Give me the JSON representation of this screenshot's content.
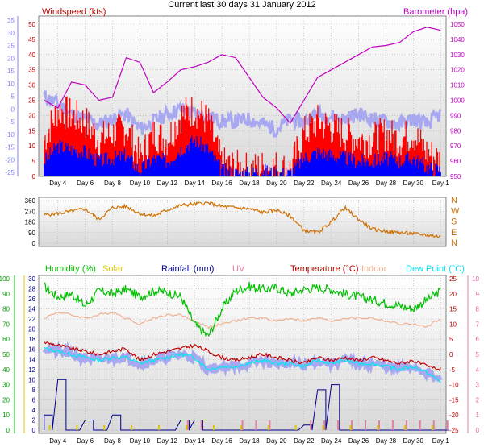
{
  "title": "Current last 30 days 31 January 2012",
  "colors": {
    "grid": "#b0b0b0",
    "plot_bg_top": "#ffffff",
    "plot_bg_bottom": "#d8d8d8",
    "windspeed": "#d40000",
    "gust": "#ff0000",
    "avgwind": "#0000ff",
    "barometer": "#c000c0",
    "direction": "#d07000",
    "humidity": "#00c000",
    "solar": "#d8c800",
    "rainfall": "#000090",
    "uv": "#e080a0",
    "temperature": "#c00000",
    "indoor": "#f0b090",
    "dewpoint": "#00e8f0",
    "dewband": "#a8a8f0",
    "left_axis_windchill": "#8080ff"
  },
  "x_labels": [
    "Day 4",
    "Day 6",
    "Day 8",
    "Day 10",
    "Day 12",
    "Day 14",
    "Day 16",
    "Day 18",
    "Day 20",
    "Day 22",
    "Day 24",
    "Day 26",
    "Day 28",
    "Day 30",
    "Day 1"
  ],
  "chart_data": [
    {
      "type": "line",
      "title": "Current last 30 days 31 January 2012",
      "panel": "wind-barometer",
      "y_left_label": "Windspeed (kts)",
      "y_right_label": "Barometer (hpa)",
      "y_left_outer_ticks": [
        "35",
        "30",
        "25",
        "20",
        "15",
        "10",
        "5",
        "0",
        "-5",
        "-10",
        "-15",
        "-20",
        "-25"
      ],
      "y_left_inner_ticks": [
        "50",
        "45",
        "40",
        "35",
        "30",
        "25",
        "20",
        "15",
        "10",
        "5",
        "0"
      ],
      "y_right_ticks": [
        "1050",
        "1040",
        "1030",
        "1020",
        "1010",
        "1000",
        "990",
        "980",
        "970",
        "960",
        "950"
      ],
      "ylim_left": [
        0,
        50
      ],
      "ylim_right": [
        950,
        1050
      ],
      "days": [
        3,
        4,
        5,
        6,
        7,
        8,
        9,
        10,
        11,
        12,
        13,
        14,
        15,
        16,
        17,
        18,
        19,
        20,
        21,
        22,
        23,
        24,
        25,
        26,
        27,
        28,
        29,
        30,
        31,
        32
      ],
      "series": [
        {
          "name": "Gust",
          "values": [
            12,
            22,
            20,
            18,
            12,
            14,
            16,
            6,
            14,
            12,
            20,
            22,
            18,
            4,
            3,
            2,
            3,
            3,
            2,
            14,
            18,
            16,
            14,
            12,
            12,
            14,
            12,
            14,
            8,
            5
          ]
        },
        {
          "name": "Average",
          "values": [
            5,
            10,
            9,
            8,
            5,
            6,
            7,
            2,
            6,
            5,
            9,
            12,
            9,
            2,
            1,
            1,
            2,
            1,
            1,
            6,
            8,
            7,
            6,
            5,
            5,
            6,
            5,
            6,
            3,
            2
          ]
        },
        {
          "name": "Barometer (hpa)",
          "values": [
            1000,
            995,
            1012,
            1010,
            1000,
            1002,
            1028,
            1025,
            1005,
            1012,
            1020,
            1022,
            1025,
            1030,
            1028,
            1015,
            1002,
            995,
            985,
            1000,
            1015,
            1020,
            1025,
            1030,
            1035,
            1036,
            1038,
            1045,
            1048,
            1046
          ]
        },
        {
          "name": "Wind chill (outer left axis)",
          "values": [
            5,
            2,
            -2,
            -4,
            -6,
            -4,
            -2,
            -8,
            -5,
            -2,
            0,
            -2,
            -3,
            -5,
            -5,
            -4,
            -6,
            -8,
            -4,
            -5,
            -2,
            -3,
            -4,
            -2,
            -4,
            -5,
            -6,
            -4,
            -6,
            -2
          ]
        }
      ]
    },
    {
      "type": "line",
      "panel": "wind-direction",
      "y_left_ticks": [
        "360",
        "270",
        "180",
        "90",
        "0"
      ],
      "y_right_ticks": [
        "N",
        "W",
        "S",
        "E",
        "N"
      ],
      "ylim": [
        0,
        360
      ],
      "days": [
        3,
        4,
        5,
        6,
        7,
        8,
        9,
        10,
        11,
        12,
        13,
        14,
        15,
        16,
        17,
        18,
        19,
        20,
        21,
        22,
        23,
        24,
        25,
        26,
        27,
        28,
        29,
        30,
        31,
        32
      ],
      "series": [
        {
          "name": "Direction",
          "values": [
            240,
            250,
            270,
            290,
            200,
            300,
            310,
            250,
            230,
            280,
            320,
            330,
            340,
            310,
            300,
            290,
            260,
            280,
            230,
            110,
            90,
            180,
            300,
            200,
            120,
            100,
            90,
            80,
            70,
            55
          ]
        }
      ]
    },
    {
      "type": "line",
      "panel": "temperature-humidity-rain",
      "legend": [
        "Humidity (%)",
        "Solar",
        "Rainfall (mm)",
        "UV",
        "Temperature (°C)",
        "Indoor",
        "Dew Point (°C)"
      ],
      "y_outer_left_ticks": [
        "100",
        "90",
        "80",
        "70",
        "60",
        "50",
        "40",
        "30",
        "20",
        "10",
        "0"
      ],
      "y_inner_left_ticks": [
        "30",
        "28",
        "26",
        "24",
        "22",
        "20",
        "18",
        "16",
        "14",
        "12",
        "10",
        "8",
        "6",
        "4",
        "2",
        "0"
      ],
      "y_right_ticks": [
        "25",
        "20",
        "15",
        "10",
        "5",
        "0",
        "-5",
        "-10",
        "-15",
        "-20",
        "-25"
      ],
      "y_outer_right_ticks": [
        "10",
        "9",
        "8",
        "7",
        "6",
        "5",
        "4",
        "3",
        "2",
        "1",
        "0"
      ],
      "ylim_humidity": [
        0,
        100
      ],
      "ylim_temperature": [
        -25,
        25
      ],
      "ylim_rain": [
        0,
        30
      ],
      "days": [
        3,
        4,
        5,
        6,
        7,
        8,
        9,
        10,
        11,
        12,
        13,
        14,
        15,
        16,
        17,
        18,
        19,
        20,
        21,
        22,
        23,
        24,
        25,
        26,
        27,
        28,
        29,
        30,
        31,
        32
      ],
      "series": [
        {
          "name": "Humidity (%)",
          "values": [
            95,
            88,
            90,
            82,
            92,
            90,
            93,
            88,
            92,
            91,
            88,
            70,
            62,
            80,
            92,
            95,
            93,
            94,
            90,
            93,
            94,
            93,
            90,
            88,
            86,
            84,
            82,
            80,
            86,
            92
          ]
        },
        {
          "name": "Indoor",
          "values": [
            12,
            14,
            13,
            12,
            13,
            14,
            12,
            10,
            12,
            13,
            13,
            11,
            9,
            10,
            11,
            12,
            12,
            11,
            12,
            11,
            12,
            11,
            12,
            12,
            12,
            11,
            10,
            10,
            9,
            12
          ]
        },
        {
          "name": "Temperature (°C)",
          "values": [
            4,
            3,
            2,
            1,
            0,
            1,
            2,
            -2,
            0,
            1,
            2,
            3,
            1,
            -1,
            -2,
            -1,
            0,
            -1,
            -2,
            -3,
            -1,
            -2,
            -1,
            -2,
            -1,
            -2,
            -3,
            -2,
            -4,
            -5
          ]
        },
        {
          "name": "Dew Point (°C)",
          "values": [
            2,
            1,
            0,
            -1,
            -2,
            -1,
            -1,
            -3,
            -2,
            -1,
            0,
            -1,
            -5,
            -4,
            -4,
            -3,
            -2,
            -3,
            -3,
            -4,
            -2,
            -3,
            -2,
            -3,
            -3,
            -4,
            -5,
            -4,
            -6,
            -9
          ]
        },
        {
          "name": "Rainfall (mm)",
          "values": [
            3,
            10,
            0,
            2,
            0,
            3,
            0,
            0,
            0,
            0,
            2,
            2,
            0,
            0,
            0,
            0,
            0,
            0,
            0,
            1,
            8,
            9,
            0,
            0,
            0,
            0,
            0,
            0,
            0,
            0
          ]
        },
        {
          "name": "UV",
          "values": [
            0,
            0,
            0,
            0,
            0,
            0,
            0,
            0,
            0,
            0,
            1,
            1,
            0,
            0,
            1,
            1,
            1,
            0,
            0,
            1,
            1,
            1,
            1,
            1,
            1,
            1,
            1,
            1,
            1,
            1
          ]
        }
      ]
    }
  ]
}
